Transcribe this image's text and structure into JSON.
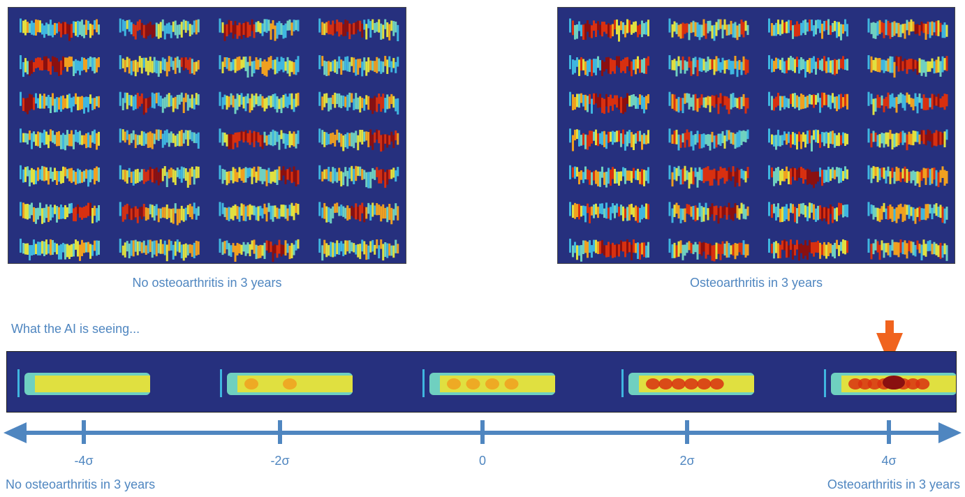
{
  "panels": {
    "left_caption": "No osteoarthritis in 3 years",
    "right_caption": "Osteoarthritis in 3 years",
    "grid_rows": 7,
    "grid_cols": 4
  },
  "strip": {
    "heading": "What the AI is seeing...",
    "levels": [
      "-4σ",
      "-2σ",
      "0",
      "2σ",
      "4σ"
    ],
    "highlight_level": "4σ"
  },
  "axis": {
    "left_end_label": "No osteoarthritis in 3 years",
    "right_end_label": "Osteoarthritis in 3 years"
  },
  "colors": {
    "background": "#26307e",
    "axis": "#4f86c0",
    "arrow": "#f0631e",
    "heat": [
      "#3fb6e0",
      "#6fd0c0",
      "#e0e040",
      "#f0a020",
      "#d83010",
      "#8a1010"
    ]
  }
}
